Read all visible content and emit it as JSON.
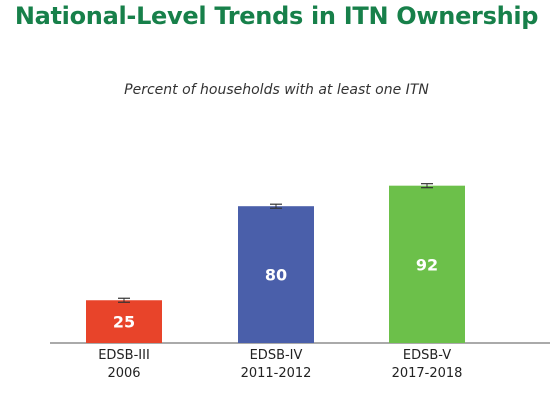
{
  "chart_data": {
    "type": "bar",
    "title": "National-Level Trends in ITN Ownership",
    "subtitle": "Percent of households with at least one ITN",
    "categories": [
      [
        "EDSB-III",
        "2006"
      ],
      [
        "EDSB-IV",
        "2011-2012"
      ],
      [
        "EDSB-V",
        "2017-2018"
      ]
    ],
    "values": [
      25,
      80,
      92
    ],
    "value_labels": [
      "25",
      "80",
      "92"
    ],
    "colors": [
      "#e8442a",
      "#4a5faa",
      "#6cc04a"
    ],
    "ylim": [
      0,
      100
    ],
    "error_bars": true,
    "grid": false,
    "xlabel": "",
    "ylabel": ""
  }
}
